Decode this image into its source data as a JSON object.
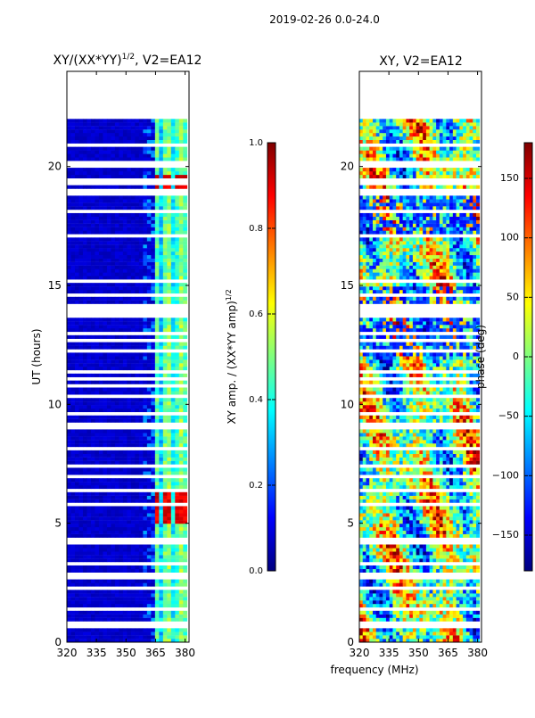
{
  "suptitle": "2019-02-26 0.0-24.0",
  "shared_xlabel": "frequency (MHz)",
  "colors": {
    "background": "#ffffff",
    "axis": "#000000",
    "low": "#00008f",
    "high": "#800000"
  },
  "chart_data": [
    {
      "type": "heatmap",
      "id": "amp",
      "title": "XY/(XX*YY)$^{1/2}$, V2=EA12",
      "title_main": "XY/(XX*YY)",
      "title_sup": "1/2",
      "title_tail": ", V2=EA12",
      "xlabel": "",
      "ylabel": "UT (hours)",
      "xlim": [
        320,
        382
      ],
      "ylim": [
        0,
        24
      ],
      "xticks": [
        320,
        335,
        350,
        365,
        380
      ],
      "yticks": [
        0,
        5,
        10,
        15,
        20
      ],
      "data_extent_hours": [
        0,
        22
      ],
      "colorbar": {
        "label": "XY amp. / (XX*YY amp)$^{1/2}$",
        "label_main": "XY amp. / (XX*YY amp)",
        "label_sup": "1/2",
        "range": [
          0.0,
          1.0
        ],
        "ticks": [
          0.0,
          0.2,
          0.4,
          0.6,
          0.8,
          1.0
        ],
        "tick_labels": [
          "0.0",
          "0.2",
          "0.4",
          "0.6",
          "0.8",
          "1.0"
        ],
        "colormap": "jet"
      },
      "description_values": {
        "background_level": 0.05,
        "rfi_band_mhz": [
          364,
          382
        ],
        "rfi_band_level": 0.45,
        "hot_spots_hours": [
          [
            5.0,
            6.5
          ],
          [
            19.0,
            19.6
          ]
        ],
        "hot_spot_level": 0.85
      }
    },
    {
      "type": "heatmap",
      "id": "phase",
      "title": "XY, V2=EA12",
      "xlabel": "frequency (MHz)",
      "ylabel": "",
      "xlim": [
        320,
        382
      ],
      "ylim": [
        0,
        24
      ],
      "xticks": [
        320,
        335,
        350,
        365,
        380
      ],
      "yticks": [
        0,
        5,
        10,
        15,
        20
      ],
      "data_extent_hours": [
        0,
        22
      ],
      "colorbar": {
        "label": "phase (deg)",
        "range": [
          -180,
          180
        ],
        "ticks": [
          -150,
          -100,
          -50,
          0,
          50,
          100,
          150
        ],
        "tick_labels": [
          "−150",
          "−100",
          "−50",
          "0",
          "50",
          "100",
          "150"
        ],
        "colormap": "jet"
      },
      "description_values": {
        "phase_spread_deg": [
          -180,
          180
        ],
        "coherent_blue_hours": [
          [
            12.0,
            15.0
          ],
          [
            17.0,
            19.0
          ]
        ]
      }
    }
  ]
}
